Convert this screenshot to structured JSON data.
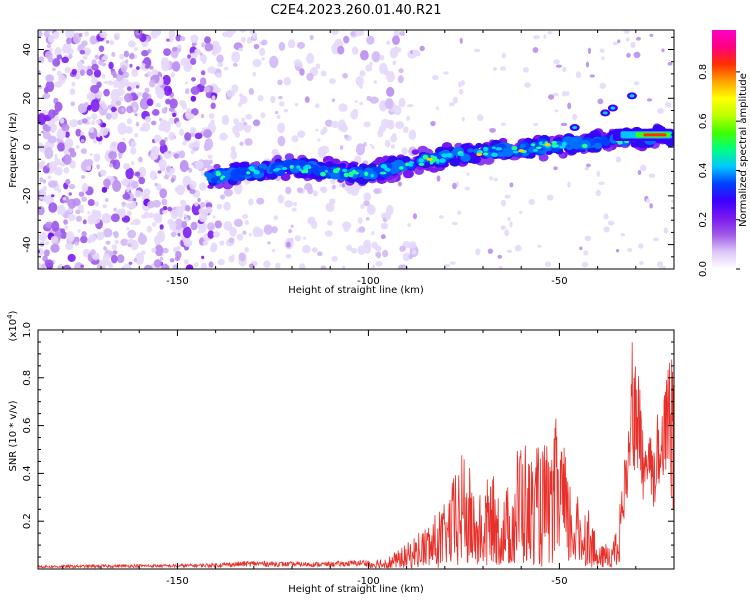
{
  "page_title": "C2E4.2023.260.01.40.R21",
  "chart_data": [
    {
      "type": "heatmap",
      "title": "C2E4.2023.260.01.40.R21",
      "xlabel": "Height of straight line (km)",
      "ylabel": "Frequency (Hz)",
      "xlim": [
        -186.5,
        -20
      ],
      "ylim": [
        -50,
        48
      ],
      "x_ticks": [
        -150,
        -100,
        -50
      ],
      "y_ticks": [
        -40,
        -20,
        0,
        20,
        40
      ],
      "colorbar": {
        "label": "Normalized spectral amplitude",
        "range": [
          0,
          0.97
        ],
        "ticks": [
          0.0,
          0.2,
          0.4,
          0.6,
          0.8
        ],
        "colormap": [
          "#ffffff",
          "#dcc8f8",
          "#a05ae6",
          "#7a18f0",
          "#3b00ff",
          "#0040ff",
          "#00c8ff",
          "#00ff80",
          "#40ff00",
          "#c0ff00",
          "#ffff00",
          "#ffa000",
          "#ff3000",
          "#ff0080",
          "#ff00c8"
        ]
      },
      "ridge": {
        "description_points_x": [
          -140,
          -130,
          -120,
          -110,
          -100,
          -90,
          -80,
          -70,
          -60,
          -50,
          -40,
          -30,
          -20
        ],
        "frequency_hz": [
          -12,
          -10,
          -8,
          -10,
          -11,
          -7,
          -4,
          -2,
          -1,
          1,
          2,
          4,
          5
        ]
      },
      "noise_region_x": [
        -186.5,
        -140
      ]
    },
    {
      "type": "line",
      "ylabel": "SNR (10 * v/v)",
      "y_multiplier": "(x10⁴)",
      "y_multiplier_base": "(x10",
      "y_multiplier_exp": "4",
      "xlabel": "Height of straight line (km)",
      "xlim": [
        -186.5,
        -20
      ],
      "ylim": [
        0,
        1.0
      ],
      "x_ticks": [
        -150,
        -100,
        -50
      ],
      "y_ticks": [
        0.2,
        0.4,
        0.6,
        0.8,
        1.0
      ],
      "series_color": "#e8302a",
      "envelope": {
        "x": [
          -186.5,
          -170,
          -160,
          -150,
          -140,
          -130,
          -120,
          -110,
          -100,
          -95,
          -90,
          -85,
          -80,
          -75,
          -72,
          -70,
          -68,
          -65,
          -62,
          -60,
          -58,
          -55,
          -52,
          -50,
          -48,
          -45,
          -42,
          -40,
          -37,
          -35,
          -33,
          -31,
          -30,
          -29,
          -28,
          -27,
          -26,
          -25,
          -24,
          -23,
          -22,
          -21,
          -20
        ],
        "y": [
          0.015,
          0.018,
          0.02,
          0.02,
          0.025,
          0.035,
          0.03,
          0.03,
          0.04,
          0.05,
          0.1,
          0.18,
          0.27,
          0.5,
          0.32,
          0.3,
          0.42,
          0.3,
          0.4,
          0.6,
          0.46,
          0.52,
          0.48,
          0.7,
          0.4,
          0.3,
          0.26,
          0.08,
          0.12,
          0.15,
          0.45,
          1.0,
          0.85,
          0.8,
          0.58,
          0.62,
          0.55,
          0.5,
          0.75,
          0.72,
          0.88,
          0.95,
          0.98
        ]
      }
    }
  ]
}
